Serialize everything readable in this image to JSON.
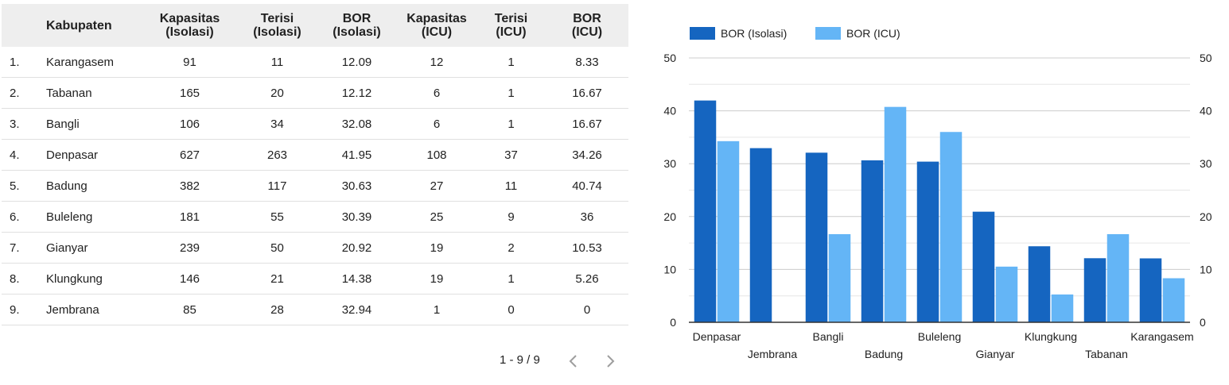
{
  "table": {
    "headers": [
      {
        "line1": "Kabupaten",
        "line2": ""
      },
      {
        "line1": "Kapasitas",
        "line2": "(Isolasi)"
      },
      {
        "line1": "Terisi",
        "line2": "(Isolasi)"
      },
      {
        "line1": "BOR",
        "line2": "(Isolasi)"
      },
      {
        "line1": "Kapasitas",
        "line2": "(ICU)"
      },
      {
        "line1": "Terisi",
        "line2": "(ICU)"
      },
      {
        "line1": "BOR",
        "line2": "(ICU)"
      }
    ],
    "rows": [
      {
        "idx": "1.",
        "name": "Karangasem",
        "kap_iso": "91",
        "ter_iso": "11",
        "bor_iso": "12.09",
        "kap_icu": "12",
        "ter_icu": "1",
        "bor_icu": "8.33"
      },
      {
        "idx": "2.",
        "name": "Tabanan",
        "kap_iso": "165",
        "ter_iso": "20",
        "bor_iso": "12.12",
        "kap_icu": "6",
        "ter_icu": "1",
        "bor_icu": "16.67"
      },
      {
        "idx": "3.",
        "name": "Bangli",
        "kap_iso": "106",
        "ter_iso": "34",
        "bor_iso": "32.08",
        "kap_icu": "6",
        "ter_icu": "1",
        "bor_icu": "16.67"
      },
      {
        "idx": "4.",
        "name": "Denpasar",
        "kap_iso": "627",
        "ter_iso": "263",
        "bor_iso": "41.95",
        "kap_icu": "108",
        "ter_icu": "37",
        "bor_icu": "34.26"
      },
      {
        "idx": "5.",
        "name": "Badung",
        "kap_iso": "382",
        "ter_iso": "117",
        "bor_iso": "30.63",
        "kap_icu": "27",
        "ter_icu": "11",
        "bor_icu": "40.74"
      },
      {
        "idx": "6.",
        "name": "Buleleng",
        "kap_iso": "181",
        "ter_iso": "55",
        "bor_iso": "30.39",
        "kap_icu": "25",
        "ter_icu": "9",
        "bor_icu": "36"
      },
      {
        "idx": "7.",
        "name": "Gianyar",
        "kap_iso": "239",
        "ter_iso": "50",
        "bor_iso": "20.92",
        "kap_icu": "19",
        "ter_icu": "2",
        "bor_icu": "10.53"
      },
      {
        "idx": "8.",
        "name": "Klungkung",
        "kap_iso": "146",
        "ter_iso": "21",
        "bor_iso": "14.38",
        "kap_icu": "19",
        "ter_icu": "1",
        "bor_icu": "5.26"
      },
      {
        "idx": "9.",
        "name": "Jembrana",
        "kap_iso": "85",
        "ter_iso": "28",
        "bor_iso": "32.94",
        "kap_icu": "1",
        "ter_icu": "0",
        "bor_icu": "0"
      }
    ]
  },
  "pagination": {
    "text": "1 - 9 / 9",
    "prev_icon": "chevron-left-icon",
    "next_icon": "chevron-right-icon"
  },
  "chart_data": {
    "type": "bar",
    "categories": [
      "Denpasar",
      "Jembrana",
      "Bangli",
      "Badung",
      "Buleleng",
      "Gianyar",
      "Klungkung",
      "Tabanan",
      "Karangasem"
    ],
    "series": [
      {
        "name": "BOR (Isolasi)",
        "color": "#1565c0",
        "values": [
          41.95,
          32.94,
          32.08,
          30.63,
          30.39,
          20.92,
          14.38,
          12.12,
          12.09
        ]
      },
      {
        "name": "BOR (ICU)",
        "color": "#64b5f6",
        "values": [
          34.26,
          0,
          16.67,
          40.74,
          36,
          10.53,
          5.26,
          16.67,
          8.33
        ]
      }
    ],
    "ylim": [
      0,
      50
    ],
    "yticks": [
      0,
      10,
      20,
      30,
      40,
      50
    ],
    "right_axis": true,
    "legend": "top-left",
    "grid": true
  }
}
